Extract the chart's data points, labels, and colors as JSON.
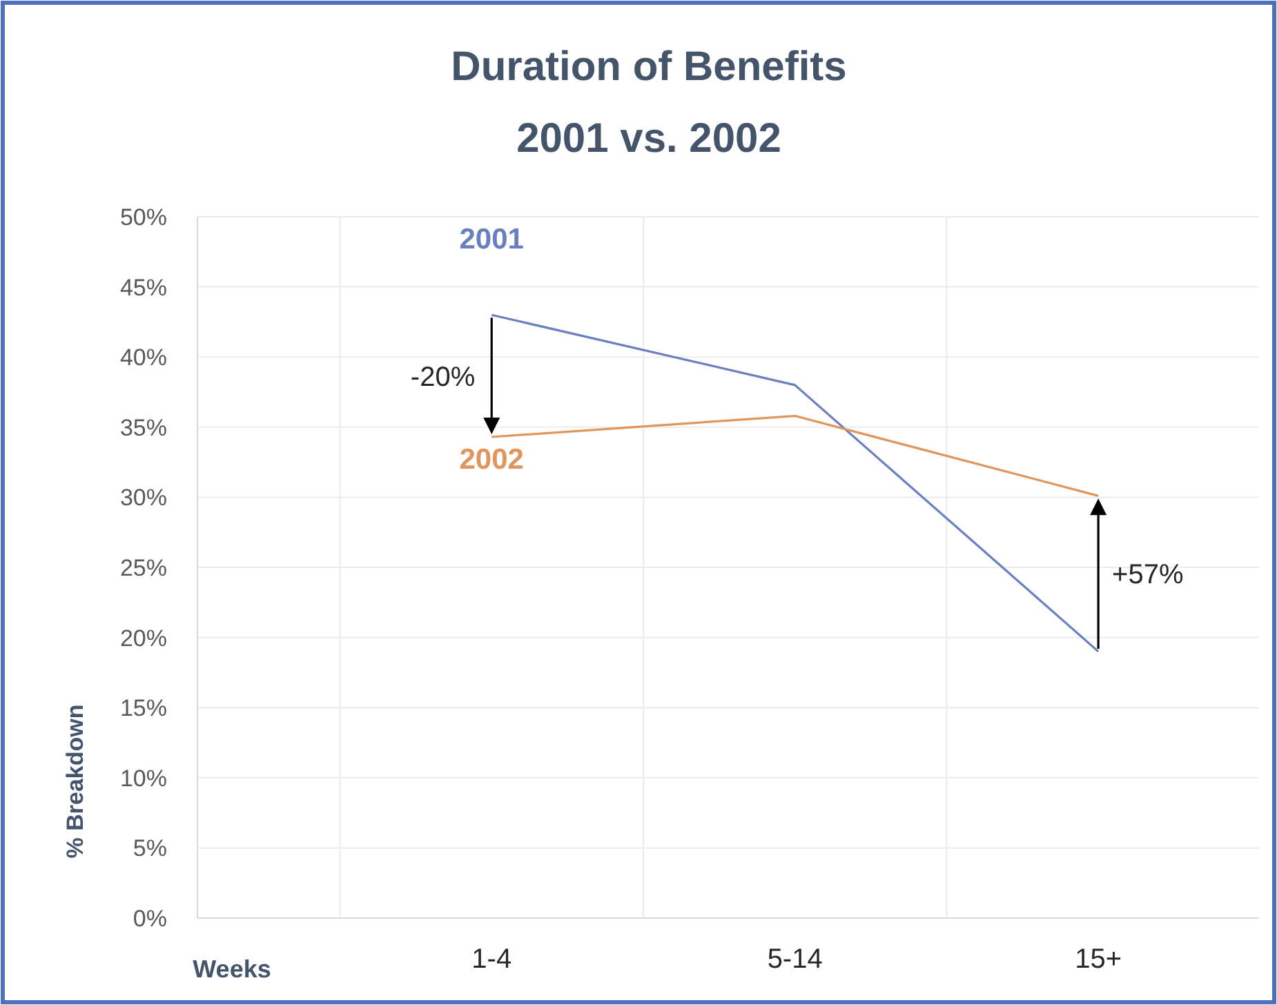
{
  "chart_data": {
    "type": "line",
    "title": "Duration of Benefits",
    "subtitle": "2001 vs. 2002",
    "xlabel": "Weeks",
    "ylabel": "% Breakdown",
    "categories": [
      "1-4",
      "5-14",
      "15+"
    ],
    "series": [
      {
        "name": "2001",
        "color": "#6a7fc0",
        "values": [
          43,
          38,
          19
        ]
      },
      {
        "name": "2002",
        "color": "#e0955a",
        "values": [
          34.3,
          35.8,
          30.1
        ]
      }
    ],
    "ylim": [
      0,
      50
    ],
    "yticks": [
      {
        "value": 0,
        "label": "0%"
      },
      {
        "value": 5,
        "label": "5%"
      },
      {
        "value": 10,
        "label": "10%"
      },
      {
        "value": 15,
        "label": "15%"
      },
      {
        "value": 20,
        "label": "20%"
      },
      {
        "value": 25,
        "label": "25%"
      },
      {
        "value": 30,
        "label": "30%"
      },
      {
        "value": 35,
        "label": "35%"
      },
      {
        "value": 40,
        "label": "40%"
      },
      {
        "value": 45,
        "label": "45%"
      },
      {
        "value": 50,
        "label": "50%"
      }
    ],
    "grid": true,
    "marker": "none",
    "line_style": "solid",
    "annotations": [
      {
        "text": "-20%",
        "x": "1-4",
        "y": 34.3
      },
      {
        "text": "+57%",
        "x": "15+",
        "y": 30.1
      }
    ]
  }
}
